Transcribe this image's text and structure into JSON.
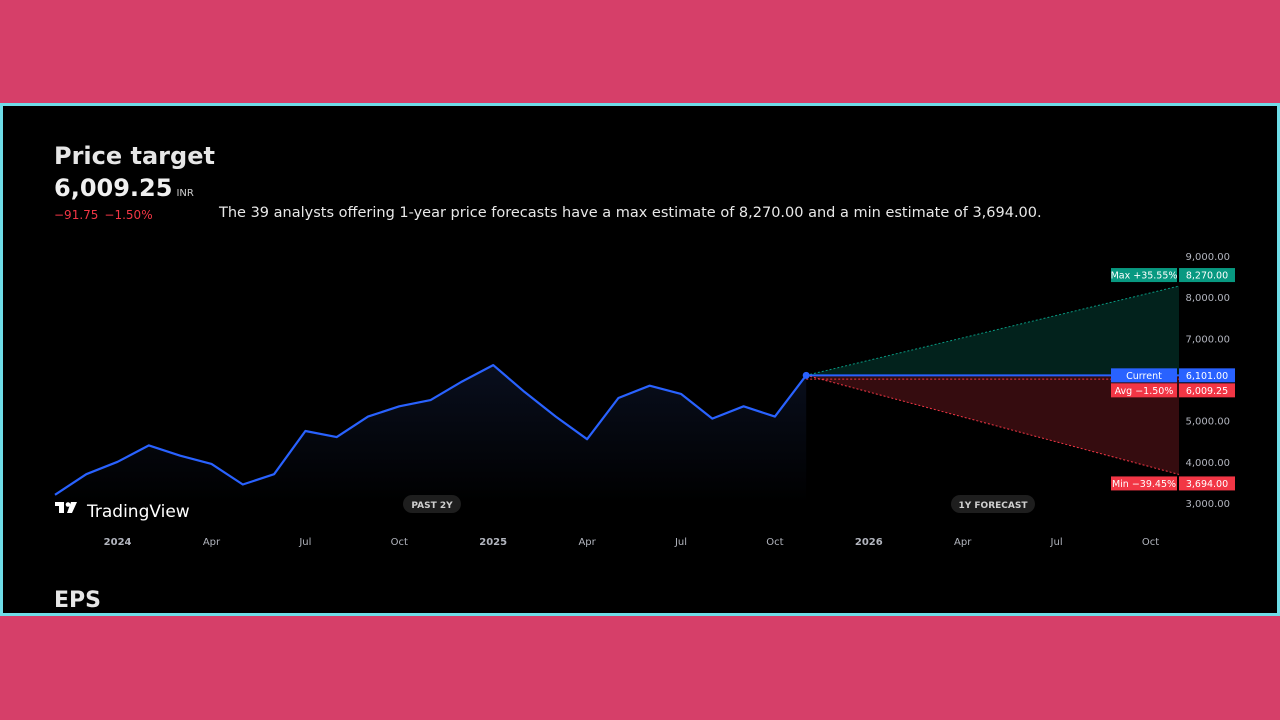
{
  "header": {
    "title": "Price target",
    "price": "6,009.25",
    "currency": "INR",
    "change_abs": "−91.75",
    "change_pct": "−1.50%",
    "summary": "The 39 analysts offering 1-year price forecasts have a max estimate of 8,270.00 and a min estimate of 3,694.00."
  },
  "chart_controls": {
    "past_label": "PAST 2Y",
    "forecast_label": "1Y FORECAST"
  },
  "logo": {
    "text": "TradingView",
    "icon": "tradingview-logo-icon"
  },
  "next_section": {
    "title": "EPS"
  },
  "colors": {
    "page_bg": "#d63f69",
    "panel_border": "#6fdde8",
    "line": "#2962ff",
    "max": "#089981",
    "avg_min": "#f23645",
    "current": "#2962ff"
  },
  "chart_data": {
    "type": "line",
    "y_ticks": [
      "9,000.00",
      "8,000.00",
      "7,000.00",
      "6,000.00",
      "5,000.00",
      "4,000.00",
      "3,000.00"
    ],
    "ylim": [
      3000,
      9000
    ],
    "x_ticks": [
      "2024",
      "Apr",
      "Jul",
      "Oct",
      "2025",
      "Apr",
      "Jul",
      "Oct",
      "2026",
      "Apr",
      "Jul",
      "Oct"
    ],
    "history": {
      "x": [
        "2023-11",
        "2023-12",
        "2024-01",
        "2024-02",
        "2024-03",
        "2024-04",
        "2024-05",
        "2024-06",
        "2024-07",
        "2024-08",
        "2024-09",
        "2024-10",
        "2024-11",
        "2024-12",
        "2025-01",
        "2025-02",
        "2025-03",
        "2025-04",
        "2025-05",
        "2025-06",
        "2025-07",
        "2025-08",
        "2025-09",
        "2025-10",
        "2025-11"
      ],
      "values": [
        3200,
        3700,
        4000,
        4400,
        4150,
        3950,
        3450,
        3700,
        4750,
        4600,
        5100,
        5350,
        5500,
        5950,
        6350,
        5700,
        5100,
        4550,
        5550,
        5850,
        5650,
        5050,
        5350,
        5100,
        6101
      ]
    },
    "forecast": {
      "current": {
        "label": "Current",
        "value": "6,101.00"
      },
      "max": {
        "label": "Max",
        "pct": "+35.55%",
        "value": "8,270.00"
      },
      "avg": {
        "label": "Avg",
        "pct": "−1.50%",
        "value": "6,009.25"
      },
      "min": {
        "label": "Min",
        "pct": "−39.45%",
        "value": "3,694.00"
      }
    }
  }
}
